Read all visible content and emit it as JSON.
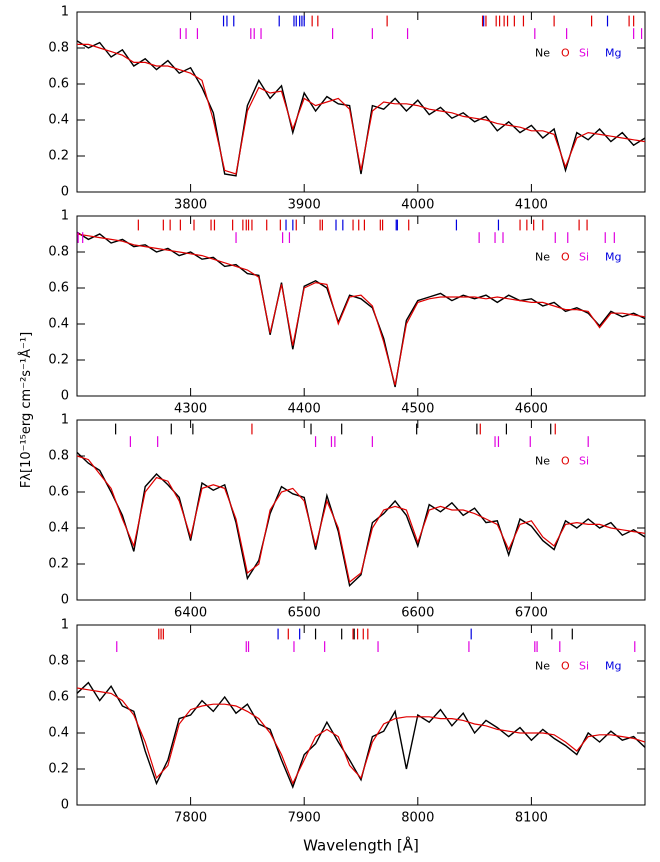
{
  "chart_data": [
    {
      "type": "line",
      "xlim": [
        3700,
        4200
      ],
      "ylim": [
        0,
        1
      ],
      "xticks": [
        3800,
        3900,
        4000,
        4100
      ],
      "yticks": [
        0,
        0.2,
        0.4,
        0.6,
        0.8,
        1
      ],
      "ylabel": "Fλ[10⁻¹⁵erg cm⁻²s⁻¹Å⁻¹]",
      "x": [
        3700,
        3710,
        3720,
        3730,
        3740,
        3750,
        3760,
        3770,
        3780,
        3790,
        3800,
        3810,
        3820,
        3830,
        3840,
        3850,
        3860,
        3870,
        3880,
        3890,
        3900,
        3910,
        3920,
        3930,
        3940,
        3950,
        3960,
        3970,
        3980,
        3990,
        4000,
        4010,
        4020,
        4030,
        4040,
        4050,
        4060,
        4070,
        4080,
        4090,
        4100,
        4110,
        4120,
        4130,
        4140,
        4150,
        4160,
        4170,
        4180,
        4190,
        4200
      ],
      "series": [
        {
          "color": "#000000",
          "values": [
            0.84,
            0.8,
            0.83,
            0.75,
            0.79,
            0.7,
            0.74,
            0.68,
            0.73,
            0.66,
            0.69,
            0.58,
            0.44,
            0.1,
            0.09,
            0.48,
            0.62,
            0.52,
            0.59,
            0.33,
            0.55,
            0.45,
            0.53,
            0.49,
            0.48,
            0.1,
            0.48,
            0.46,
            0.52,
            0.45,
            0.51,
            0.43,
            0.47,
            0.41,
            0.44,
            0.39,
            0.42,
            0.34,
            0.39,
            0.33,
            0.37,
            0.3,
            0.35,
            0.12,
            0.33,
            0.29,
            0.35,
            0.28,
            0.33,
            0.26,
            0.3
          ]
        },
        {
          "color": "#e00000",
          "values": [
            0.82,
            0.82,
            0.8,
            0.78,
            0.76,
            0.72,
            0.72,
            0.7,
            0.7,
            0.68,
            0.66,
            0.62,
            0.4,
            0.12,
            0.1,
            0.45,
            0.58,
            0.55,
            0.56,
            0.35,
            0.52,
            0.48,
            0.5,
            0.52,
            0.46,
            0.12,
            0.45,
            0.5,
            0.49,
            0.49,
            0.48,
            0.46,
            0.45,
            0.44,
            0.42,
            0.41,
            0.4,
            0.38,
            0.37,
            0.36,
            0.34,
            0.34,
            0.32,
            0.14,
            0.3,
            0.33,
            0.32,
            0.31,
            0.3,
            0.29,
            0.28
          ]
        }
      ],
      "elements": [
        {
          "name": "Ne",
          "color": "#000000"
        },
        {
          "name": "O",
          "color": "#e00000",
          "x": [
            3907,
            3912,
            3973,
            4057,
            4060,
            4069,
            4072,
            4076,
            4079,
            4085,
            4093,
            4120,
            4153,
            4186,
            4190
          ]
        },
        {
          "name": "Si",
          "color": "#e000e0",
          "x": [
            3791,
            3796,
            3806,
            3853,
            3856,
            3862,
            3925,
            3960,
            3991,
            4103,
            4131,
            4190,
            4197
          ]
        },
        {
          "name": "Mg",
          "color": "#0000e0",
          "x": [
            3829,
            3832,
            3838,
            3878,
            3891,
            3893,
            3896,
            3898,
            3900,
            4058,
            4167
          ]
        }
      ]
    },
    {
      "type": "line",
      "xlim": [
        4200,
        4700
      ],
      "ylim": [
        0,
        1
      ],
      "xticks": [
        4300,
        4400,
        4500,
        4600
      ],
      "yticks": [
        0,
        0.2,
        0.4,
        0.6,
        0.8,
        1
      ],
      "x": [
        4200,
        4210,
        4220,
        4230,
        4240,
        4250,
        4260,
        4270,
        4280,
        4290,
        4300,
        4310,
        4320,
        4330,
        4340,
        4350,
        4360,
        4370,
        4380,
        4390,
        4400,
        4410,
        4420,
        4430,
        4440,
        4450,
        4460,
        4470,
        4480,
        4490,
        4500,
        4510,
        4520,
        4530,
        4540,
        4550,
        4560,
        4570,
        4580,
        4590,
        4600,
        4610,
        4620,
        4630,
        4640,
        4650,
        4660,
        4670,
        4680,
        4690,
        4700
      ],
      "series": [
        {
          "color": "#000000",
          "values": [
            0.91,
            0.87,
            0.9,
            0.85,
            0.87,
            0.83,
            0.84,
            0.8,
            0.82,
            0.78,
            0.8,
            0.76,
            0.77,
            0.72,
            0.73,
            0.68,
            0.67,
            0.34,
            0.63,
            0.26,
            0.61,
            0.64,
            0.6,
            0.41,
            0.56,
            0.54,
            0.49,
            0.32,
            0.05,
            0.42,
            0.53,
            0.55,
            0.57,
            0.53,
            0.56,
            0.54,
            0.56,
            0.52,
            0.56,
            0.53,
            0.54,
            0.5,
            0.52,
            0.47,
            0.49,
            0.46,
            0.39,
            0.47,
            0.44,
            0.46,
            0.43
          ]
        },
        {
          "color": "#e00000",
          "values": [
            0.9,
            0.89,
            0.88,
            0.87,
            0.86,
            0.84,
            0.83,
            0.82,
            0.81,
            0.8,
            0.79,
            0.78,
            0.76,
            0.74,
            0.72,
            0.7,
            0.66,
            0.35,
            0.62,
            0.28,
            0.6,
            0.63,
            0.62,
            0.4,
            0.55,
            0.56,
            0.5,
            0.3,
            0.06,
            0.4,
            0.52,
            0.54,
            0.55,
            0.55,
            0.55,
            0.55,
            0.54,
            0.55,
            0.54,
            0.53,
            0.52,
            0.52,
            0.5,
            0.48,
            0.48,
            0.47,
            0.38,
            0.46,
            0.46,
            0.45,
            0.44
          ]
        }
      ],
      "elements": [
        {
          "name": "Ne",
          "color": "#000000"
        },
        {
          "name": "O",
          "color": "#e00000",
          "x": [
            4254,
            4276,
            4282,
            4291,
            4303,
            4318,
            4321,
            4337,
            4346,
            4349,
            4351,
            4354,
            4367,
            4379,
            4393,
            4414,
            4416,
            4443,
            4448,
            4453,
            4467,
            4469,
            4492,
            4590,
            4596,
            4602,
            4610,
            4642,
            4649
          ]
        },
        {
          "name": "Si",
          "color": "#e000e0",
          "x": [
            4201,
            4205,
            4340,
            4381,
            4387,
            4554,
            4568,
            4575,
            4621,
            4632,
            4665,
            4673
          ]
        },
        {
          "name": "Mg",
          "color": "#0000e0",
          "x": [
            4384,
            4390,
            4428,
            4434,
            4481,
            4482,
            4534,
            4571
          ]
        }
      ]
    },
    {
      "type": "line",
      "xlim": [
        6300,
        6800
      ],
      "ylim": [
        0,
        1
      ],
      "xticks": [
        6400,
        6500,
        6600,
        6700
      ],
      "yticks": [
        0,
        0.2,
        0.4,
        0.6,
        0.8,
        1
      ],
      "x": [
        6300,
        6310,
        6320,
        6330,
        6340,
        6350,
        6360,
        6370,
        6380,
        6390,
        6400,
        6410,
        6420,
        6430,
        6440,
        6450,
        6460,
        6470,
        6480,
        6490,
        6500,
        6510,
        6520,
        6530,
        6540,
        6550,
        6560,
        6570,
        6580,
        6590,
        6600,
        6610,
        6620,
        6630,
        6640,
        6650,
        6660,
        6670,
        6680,
        6690,
        6700,
        6710,
        6720,
        6730,
        6740,
        6750,
        6760,
        6770,
        6780,
        6790,
        6800
      ],
      "series": [
        {
          "color": "#000000",
          "values": [
            0.82,
            0.76,
            0.72,
            0.6,
            0.47,
            0.27,
            0.63,
            0.7,
            0.64,
            0.57,
            0.33,
            0.65,
            0.61,
            0.64,
            0.43,
            0.12,
            0.22,
            0.48,
            0.63,
            0.59,
            0.57,
            0.28,
            0.58,
            0.38,
            0.08,
            0.14,
            0.43,
            0.48,
            0.55,
            0.47,
            0.3,
            0.53,
            0.49,
            0.54,
            0.47,
            0.51,
            0.43,
            0.44,
            0.25,
            0.45,
            0.41,
            0.33,
            0.28,
            0.44,
            0.4,
            0.45,
            0.4,
            0.43,
            0.36,
            0.39,
            0.35
          ]
        },
        {
          "color": "#e00000",
          "values": [
            0.8,
            0.78,
            0.7,
            0.62,
            0.45,
            0.3,
            0.6,
            0.68,
            0.66,
            0.55,
            0.35,
            0.62,
            0.64,
            0.62,
            0.45,
            0.15,
            0.2,
            0.5,
            0.6,
            0.62,
            0.55,
            0.3,
            0.55,
            0.4,
            0.1,
            0.15,
            0.4,
            0.5,
            0.52,
            0.5,
            0.32,
            0.5,
            0.52,
            0.5,
            0.5,
            0.48,
            0.45,
            0.42,
            0.28,
            0.42,
            0.44,
            0.35,
            0.3,
            0.42,
            0.43,
            0.42,
            0.42,
            0.4,
            0.39,
            0.38,
            0.37
          ]
        }
      ],
      "elements": [
        {
          "name": "Ne",
          "color": "#000000",
          "x": [
            6334,
            6383,
            6402,
            6506,
            6533,
            6599,
            6652,
            6678,
            6717
          ]
        },
        {
          "name": "O",
          "color": "#e00000",
          "x": [
            6454,
            6655,
            6721
          ]
        },
        {
          "name": "Si",
          "color": "#e000e0",
          "x": [
            6347,
            6371,
            6510,
            6524,
            6527,
            6560,
            6668,
            6671,
            6699,
            6750
          ]
        }
      ]
    },
    {
      "type": "line",
      "xlim": [
        7700,
        8200
      ],
      "ylim": [
        0,
        1
      ],
      "xticks": [
        7800,
        7900,
        8000,
        8100
      ],
      "yticks": [
        0,
        0.2,
        0.4,
        0.6,
        0.8,
        1
      ],
      "xlabel": "Wavelength [Å]",
      "x": [
        7700,
        7710,
        7720,
        7730,
        7740,
        7750,
        7760,
        7770,
        7780,
        7790,
        7800,
        7810,
        7820,
        7830,
        7840,
        7850,
        7860,
        7870,
        7880,
        7890,
        7900,
        7910,
        7920,
        7930,
        7940,
        7950,
        7960,
        7970,
        7980,
        7990,
        8000,
        8010,
        8020,
        8030,
        8040,
        8050,
        8060,
        8070,
        8080,
        8090,
        8100,
        8110,
        8120,
        8130,
        8140,
        8150,
        8160,
        8170,
        8180,
        8190,
        8200
      ],
      "series": [
        {
          "color": "#000000",
          "values": [
            0.62,
            0.68,
            0.58,
            0.66,
            0.55,
            0.52,
            0.3,
            0.12,
            0.25,
            0.48,
            0.5,
            0.58,
            0.52,
            0.6,
            0.51,
            0.56,
            0.45,
            0.42,
            0.25,
            0.1,
            0.28,
            0.34,
            0.46,
            0.35,
            0.25,
            0.14,
            0.38,
            0.41,
            0.52,
            0.2,
            0.5,
            0.46,
            0.53,
            0.44,
            0.51,
            0.4,
            0.47,
            0.43,
            0.38,
            0.43,
            0.36,
            0.42,
            0.37,
            0.33,
            0.28,
            0.4,
            0.35,
            0.41,
            0.36,
            0.38,
            0.32
          ]
        },
        {
          "color": "#e00000",
          "values": [
            0.65,
            0.64,
            0.63,
            0.62,
            0.58,
            0.5,
            0.35,
            0.15,
            0.22,
            0.45,
            0.53,
            0.55,
            0.56,
            0.56,
            0.55,
            0.52,
            0.48,
            0.4,
            0.28,
            0.12,
            0.25,
            0.38,
            0.42,
            0.38,
            0.22,
            0.15,
            0.35,
            0.45,
            0.48,
            0.49,
            0.49,
            0.49,
            0.48,
            0.48,
            0.47,
            0.45,
            0.44,
            0.42,
            0.41,
            0.4,
            0.4,
            0.4,
            0.39,
            0.35,
            0.3,
            0.38,
            0.39,
            0.39,
            0.38,
            0.37,
            0.35
          ]
        }
      ],
      "elements": [
        {
          "name": "Ne",
          "color": "#000000",
          "x": [
            7910,
            7933,
            7944,
            8118,
            8136
          ]
        },
        {
          "name": "O",
          "color": "#e00000",
          "x": [
            7772,
            7774,
            7776,
            7886,
            7943,
            7947,
            7952,
            7956
          ]
        },
        {
          "name": "Si",
          "color": "#e000e0",
          "x": [
            7735,
            7849,
            7851,
            7891,
            7918,
            7965,
            8045,
            8103,
            8105,
            8125,
            8191
          ]
        },
        {
          "name": "Mg",
          "color": "#0000e0",
          "x": [
            7877,
            7896,
            8047
          ]
        }
      ]
    }
  ]
}
